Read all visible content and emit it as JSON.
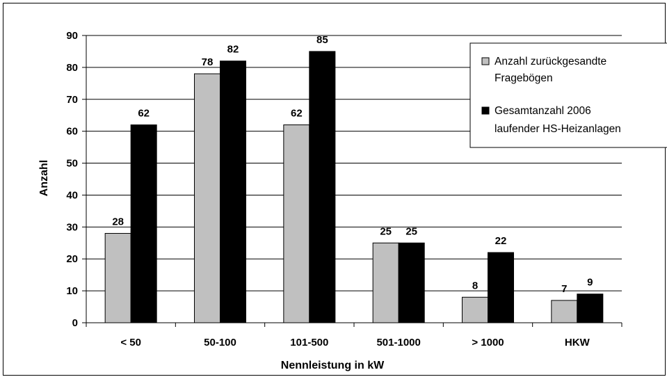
{
  "chart_data": {
    "type": "bar",
    "categories": [
      "< 50",
      "50-100",
      "101-500",
      "501-1000",
      "> 1000",
      "HKW"
    ],
    "series": [
      {
        "name": "Anzahl zurückgesandte Fragebögen",
        "values": [
          28,
          78,
          62,
          25,
          8,
          7
        ],
        "color": "#c0c0c0"
      },
      {
        "name": "Gesamtanzahl 2006 laufender HS-Heizanlagen",
        "values": [
          62,
          82,
          85,
          25,
          22,
          9
        ],
        "color": "#000000"
      }
    ],
    "legend_lines": [
      [
        "Anzahl zurückgesandte",
        "Fragebögen"
      ],
      [
        "Gesamtanzahl 2006",
        "laufender HS-Heizanlagen"
      ]
    ],
    "title": "",
    "xlabel": "Nennleistung in kW",
    "ylabel": "Anzahl",
    "ylim": [
      0,
      90
    ],
    "yticks": [
      0,
      10,
      20,
      30,
      40,
      50,
      60,
      70,
      80,
      90
    ],
    "grid": true,
    "legend_position": "top-right"
  }
}
